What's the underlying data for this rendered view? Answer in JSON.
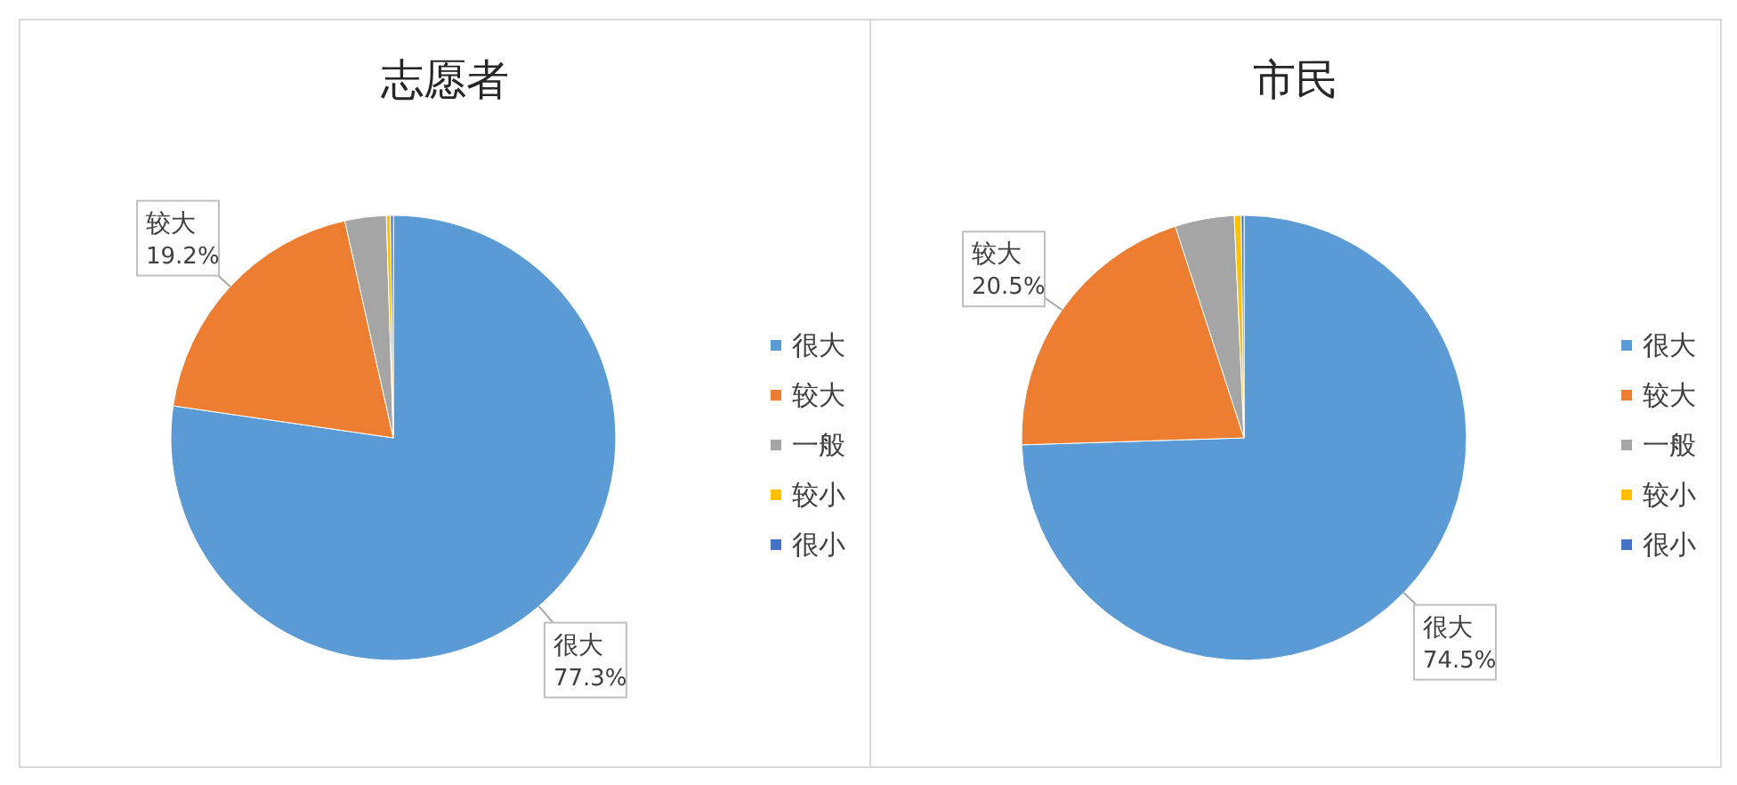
{
  "chart_data": [
    {
      "type": "pie",
      "title": "志愿者",
      "categories": [
        "很大",
        "较大",
        "一般",
        "较小",
        "很小"
      ],
      "values": [
        77.3,
        19.2,
        3.0,
        0.3,
        0.2
      ],
      "value_labels": [
        "77.3%",
        "19.2%",
        null,
        null,
        null
      ],
      "colors": [
        "#5b9bd5",
        "#ed7d31",
        "#a5a5a5",
        "#ffc000",
        "#4472c4"
      ],
      "legend": "right"
    },
    {
      "type": "pie",
      "title": "市民",
      "categories": [
        "很大",
        "较大",
        "一般",
        "较小",
        "很小"
      ],
      "values": [
        74.5,
        20.5,
        4.3,
        0.5,
        0.2
      ],
      "value_labels": [
        "74.5%",
        "20.5%",
        null,
        null,
        null
      ],
      "colors": [
        "#5b9bd5",
        "#ed7d31",
        "#a5a5a5",
        "#ffc000",
        "#4472c4"
      ],
      "legend": "right"
    }
  ]
}
